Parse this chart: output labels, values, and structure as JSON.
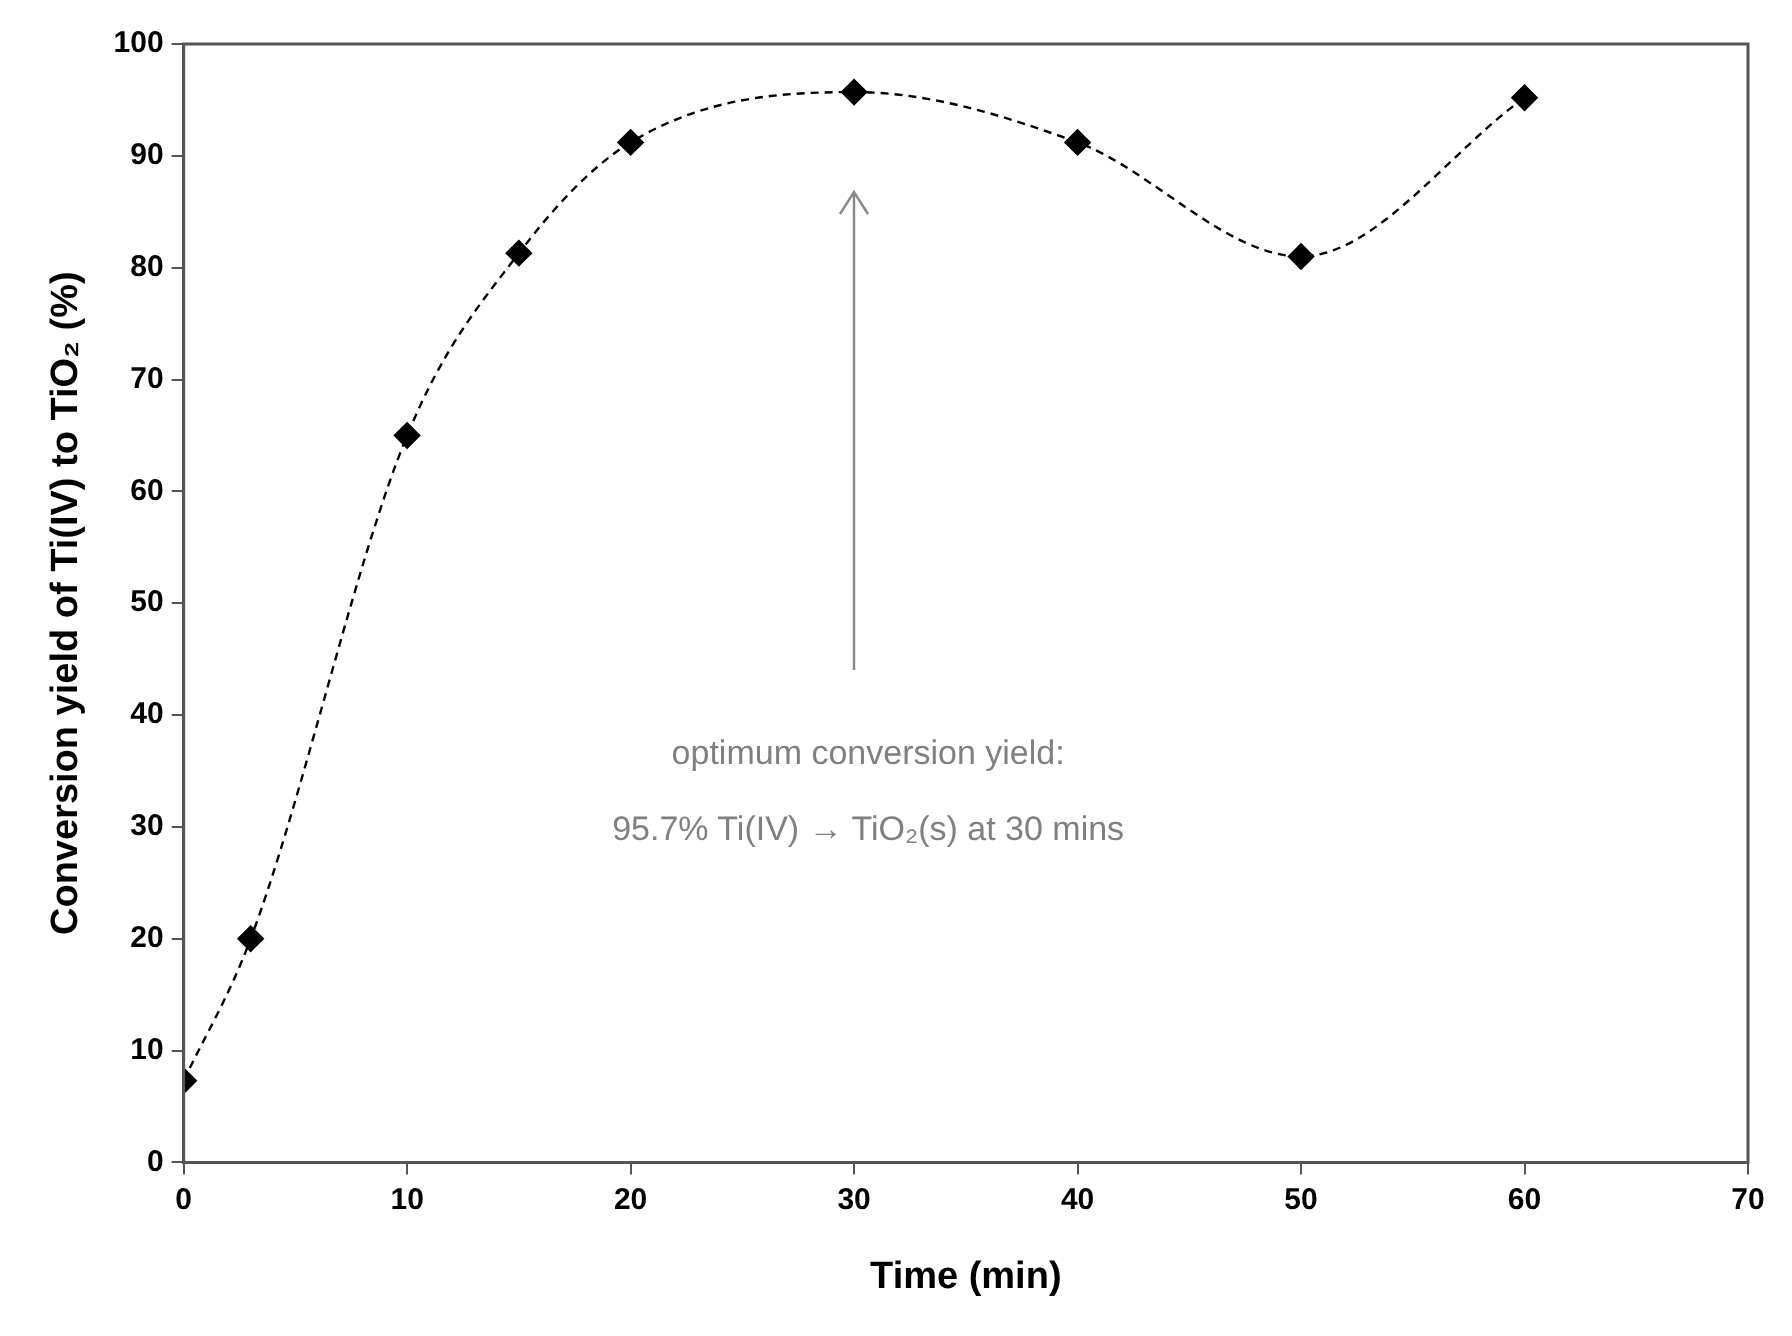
{
  "chart_data": {
    "type": "line",
    "xlabel": "Time (min)",
    "ylabel": "Conversion yield of Ti(IV) to TiO₂ (%)",
    "x": [
      0,
      3,
      10,
      15,
      20,
      30,
      40,
      50,
      60
    ],
    "series": [
      {
        "color": "#000000",
        "values": [
          7.3,
          20,
          65,
          81.3,
          91.2,
          95.7,
          91.2,
          81,
          95.2
        ]
      }
    ],
    "xlim": [
      0,
      70
    ],
    "xticks": [
      0,
      10,
      20,
      30,
      40,
      50,
      60,
      70
    ],
    "ylim": [
      0,
      100
    ],
    "yticks": [
      0,
      10,
      20,
      30,
      40,
      50,
      60,
      70,
      80,
      90,
      100
    ],
    "grid": false,
    "legend": false,
    "marker": "diamond",
    "line_style": "dashed",
    "annotations": [
      "optimum conversion yield:\n95.7% Ti(IV) → TiO₂(s) at 30 mins"
    ]
  }
}
